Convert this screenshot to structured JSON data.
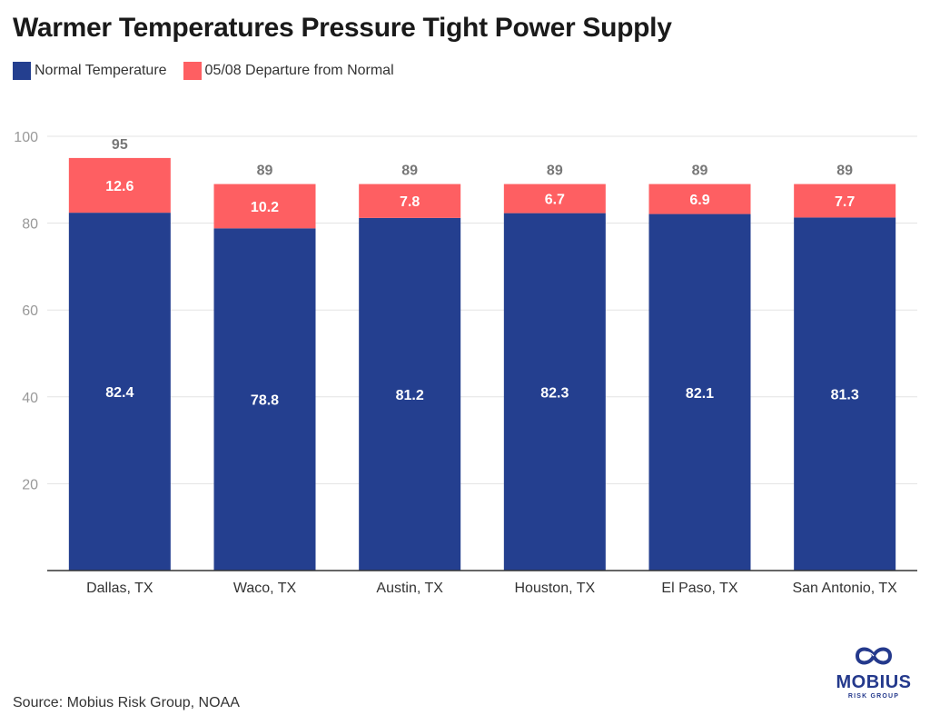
{
  "chart_data": {
    "type": "bar",
    "stacked": true,
    "title": "Warmer Temperatures Pressure Tight Power Supply",
    "categories": [
      "Dallas, TX",
      "Waco, TX",
      "Austin, TX",
      "Houston, TX",
      "El Paso, TX",
      "San Antonio, TX"
    ],
    "series": [
      {
        "name": "Normal Temperature",
        "color": "#243f8f",
        "values": [
          82.4,
          78.8,
          81.2,
          82.3,
          82.1,
          81.3
        ]
      },
      {
        "name": "05/08 Departure from Normal",
        "color": "#fe5f62",
        "values": [
          12.6,
          10.2,
          7.8,
          6.7,
          6.9,
          7.7
        ]
      }
    ],
    "totals": [
      "95",
      "89",
      "89",
      "89",
      "89",
      "89"
    ],
    "xlabel": "",
    "ylabel": "",
    "ylim": [
      0,
      100
    ],
    "yticks": [
      20,
      40,
      60,
      80,
      100
    ],
    "grid": true,
    "legend": "top-left"
  },
  "source": "Source: Mobius Risk Group, NOAA",
  "logo": {
    "name": "MOBIUS",
    "subtitle": "RISK GROUP",
    "icon": "mobius-infinity-icon",
    "color": "#24398c"
  }
}
